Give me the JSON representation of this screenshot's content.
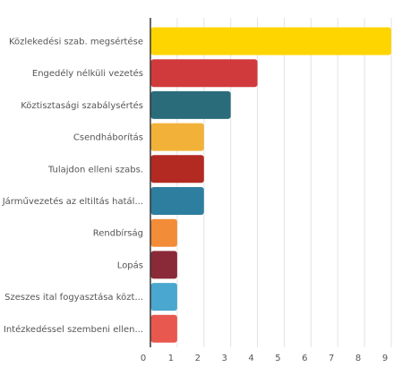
{
  "chart_data": {
    "type": "bar",
    "orientation": "horizontal",
    "categories": [
      "Közlekedési szab. megsértése",
      "Engedély nélküli vezetés",
      "Köztisztasági szabálysértés",
      "Csendháborítás",
      "Tulajdon elleni szabs.",
      "Járművezetés az eltiltás hatál...",
      "Rendbírság",
      "Lopás",
      "Szeszes ital fogyasztása közt...",
      "Intézkedéssel szembeni ellen..."
    ],
    "values": [
      9,
      4,
      3,
      2,
      2,
      2,
      1,
      1,
      1,
      1
    ],
    "colors": [
      "#FFD500",
      "#D13A3C",
      "#2B6C7B",
      "#F2B23A",
      "#B22A22",
      "#2E7E9F",
      "#F28C38",
      "#8A2A38",
      "#4AA7CF",
      "#E8584E"
    ],
    "xticks": [
      0,
      1,
      2,
      3,
      4,
      5,
      6,
      7,
      8,
      9
    ],
    "xlim": [
      0,
      9
    ],
    "grid": "vertical",
    "title": "",
    "xlabel": "",
    "ylabel": ""
  }
}
